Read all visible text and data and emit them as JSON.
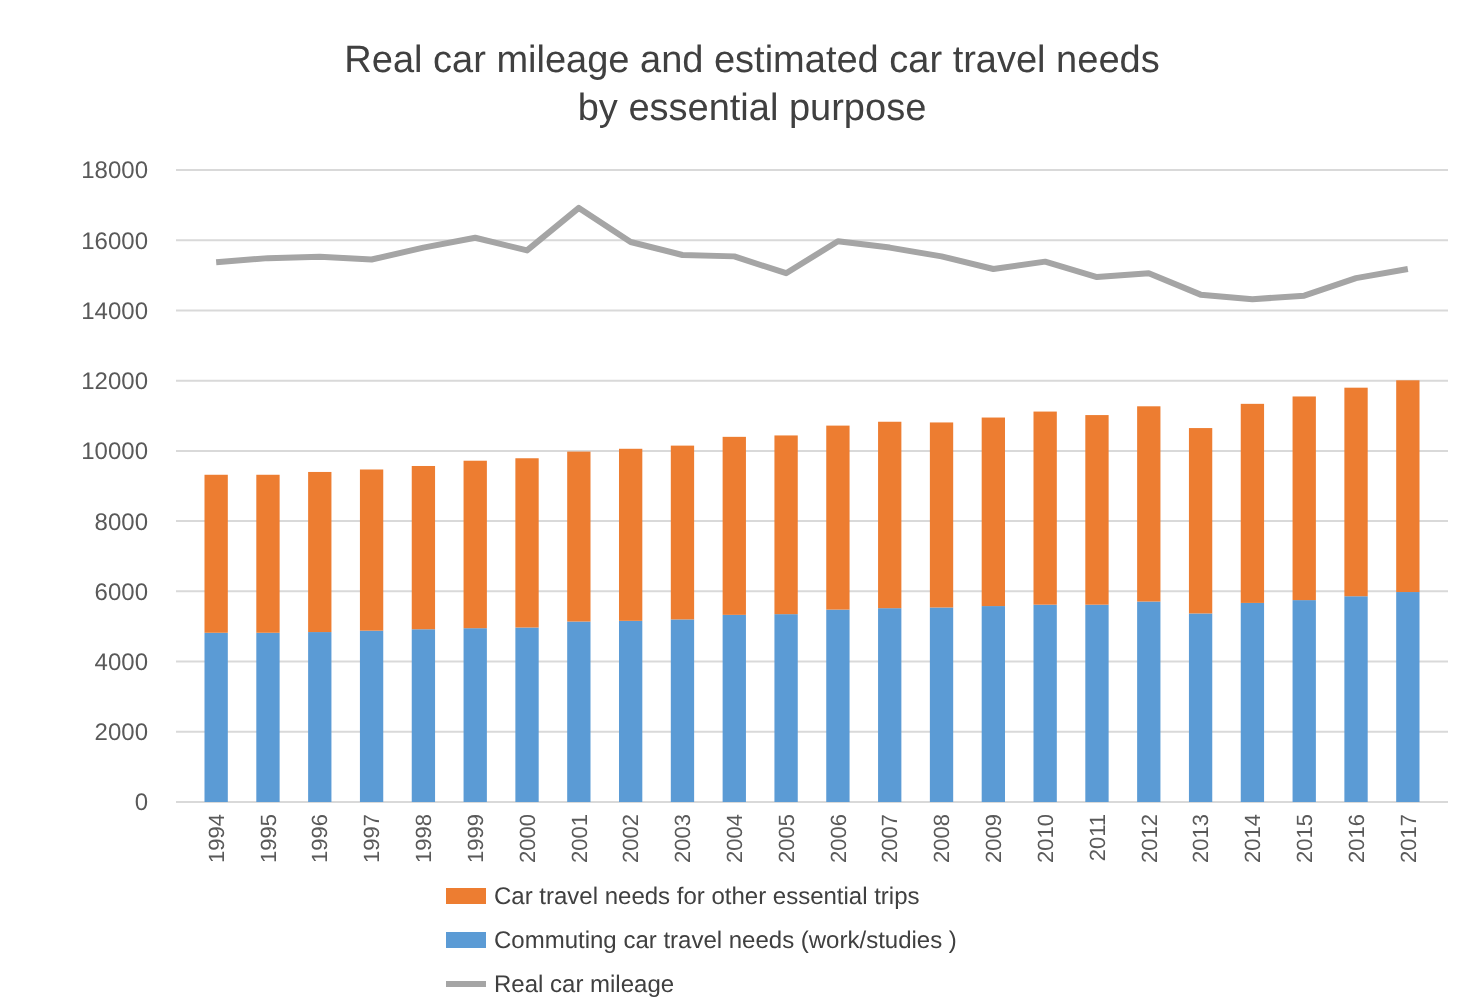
{
  "chart_data": {
    "type": "bar",
    "title": "Real car mileage and estimated car travel needs\nby essential purpose",
    "categories": [
      "1994",
      "1995",
      "1996",
      "1997",
      "1998",
      "1999",
      "2000",
      "2001",
      "2002",
      "2003",
      "2004",
      "2005",
      "2006",
      "2007",
      "2008",
      "2009",
      "2010",
      "2011",
      "2012",
      "2013",
      "2014",
      "2015",
      "2016",
      "2017"
    ],
    "stacked": true,
    "ylim": [
      0,
      18000
    ],
    "yticks": [
      0,
      2000,
      4000,
      6000,
      8000,
      10000,
      12000,
      14000,
      16000,
      18000
    ],
    "grid": "y",
    "legend": "bottom",
    "series": [
      {
        "name": "Commuting car travel needs (work/studies )",
        "color": "#5b9bd5",
        "values": [
          4820,
          4820,
          4840,
          4880,
          4920,
          4950,
          4970,
          5140,
          5160,
          5200,
          5330,
          5350,
          5480,
          5520,
          5540,
          5580,
          5620,
          5620,
          5710,
          5370,
          5670,
          5750,
          5860,
          5980
        ]
      },
      {
        "name": "Car travel needs for other essential trips",
        "color": "#ed7d31",
        "values": [
          4500,
          4500,
          4560,
          4590,
          4650,
          4770,
          4820,
          4840,
          4900,
          4950,
          5070,
          5090,
          5240,
          5310,
          5270,
          5370,
          5500,
          5400,
          5560,
          5280,
          5670,
          5800,
          5940,
          6030
        ]
      },
      {
        "name": "Real car mileage",
        "type": "line",
        "color": "#a5a5a5",
        "values": [
          15370,
          15490,
          15530,
          15450,
          15790,
          16070,
          15710,
          16920,
          15950,
          15580,
          15540,
          15060,
          15970,
          15790,
          15540,
          15180,
          15390,
          14950,
          15060,
          14450,
          14320,
          14420,
          14920,
          15180
        ]
      }
    ]
  }
}
